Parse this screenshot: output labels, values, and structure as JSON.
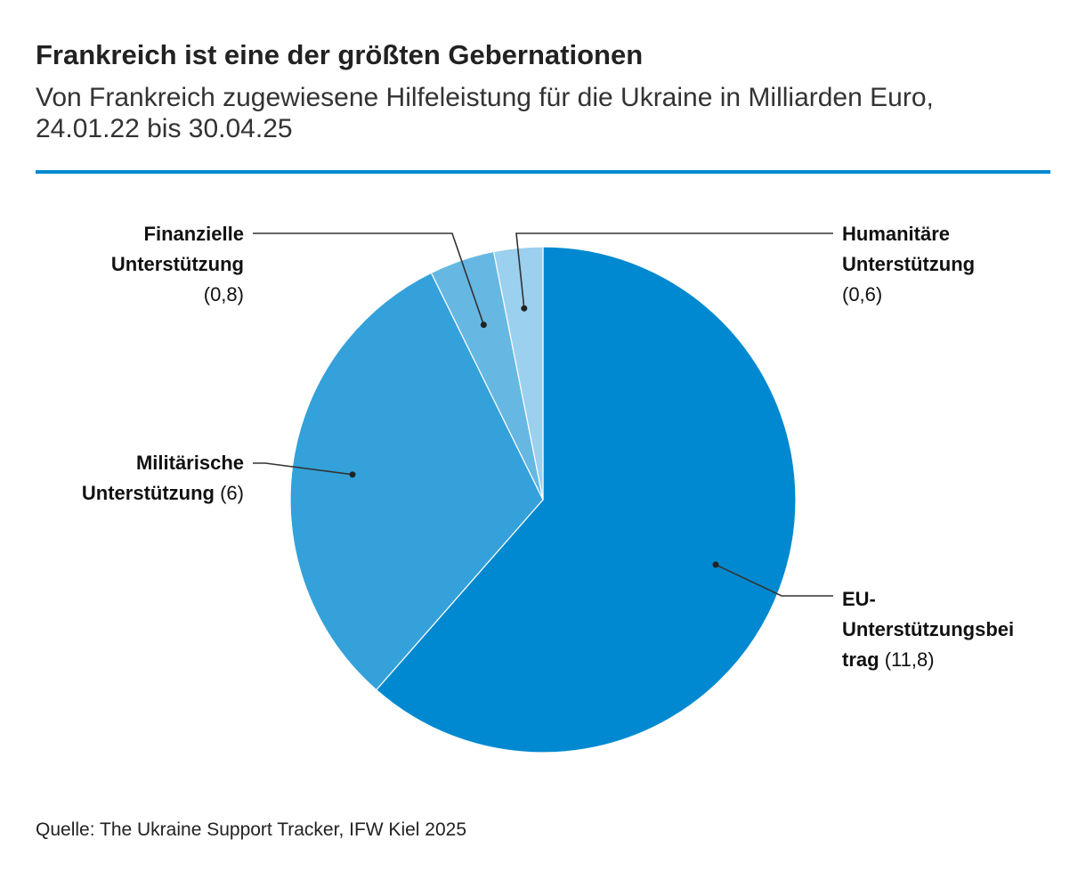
{
  "header": {
    "title": "Frankreich ist eine der größten Gebernationen",
    "subtitle": "Von Frankreich zugewiesene Hilfeleistung für die Ukraine in Milliarden Euro, 24.01.22 bis 30.04.25"
  },
  "chart_data": {
    "type": "pie",
    "title": "Frankreich ist eine der größten Gebernationen",
    "subtitle": "Von Frankreich zugewiesene Hilfeleistung für die Ukraine in Milliarden Euro, 24.01.22 bis 30.04.25",
    "unit": "Milliarden Euro",
    "start_angle": "12 o'clock",
    "direction": "clockwise",
    "slices": [
      {
        "key": "eu",
        "label": "EU-Unterstützungsbeitrag",
        "label_line1": "EU-",
        "label_line2": "Unterstützungsbei",
        "label_line3": "trag",
        "value": 11.8,
        "value_text": "(11,8)",
        "color": "#0089d0"
      },
      {
        "key": "mil",
        "label": "Militärische Unterstützung",
        "label_line1": "Militärische",
        "label_line2": "Unterstützung",
        "value": 6,
        "value_text": "(6)",
        "color": "#34a1da"
      },
      {
        "key": "fin",
        "label": "Finanzielle Unterstützung",
        "label_line1": "Finanzielle",
        "label_line2": "Unterstützung",
        "value": 0.8,
        "value_text": "(0,8)",
        "color": "#66b8e3"
      },
      {
        "key": "hum",
        "label": "Humanitäre Unterstützung",
        "label_line1": "Humanitäre",
        "label_line2": "Unterstützung",
        "value": 0.6,
        "value_text": "(0,6)",
        "color": "#9bd0ee"
      }
    ]
  },
  "footer": {
    "source": "Quelle: The Ukraine Support Tracker, IFW Kiel 2025"
  },
  "colors": {
    "accent_rule": "#0089d0",
    "leader_line": "#333333"
  }
}
